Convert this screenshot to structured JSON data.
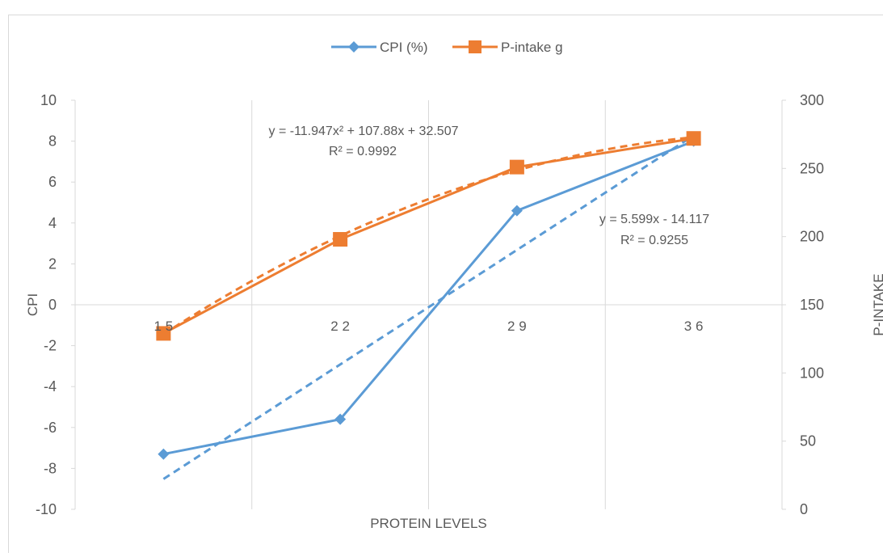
{
  "chart_data": {
    "type": "line",
    "title": "",
    "xlabel": "PROTEIN LEVELS",
    "ylabel": "CPI",
    "y2label": "P-INTAKE",
    "categories": [
      "1 5",
      "2 2",
      "2 9",
      "3 6"
    ],
    "ylim": [
      -10,
      10
    ],
    "y2lim": [
      0,
      300
    ],
    "yticks": [
      "-10",
      "-8",
      "-6",
      "-4",
      "-2",
      "0",
      "2",
      "4",
      "6",
      "8",
      "10"
    ],
    "y2ticks": [
      "0",
      "50",
      "100",
      "150",
      "200",
      "250",
      "300"
    ],
    "legend_position": "top",
    "grid": true,
    "series": [
      {
        "name": "CPI (%)",
        "axis": "left",
        "values": [
          -7.3,
          -5.6,
          4.6,
          8.0
        ],
        "color": "#5b9bd5",
        "marker": "diamond"
      },
      {
        "name": "P-intake g",
        "axis": "right",
        "values": [
          129,
          198,
          251,
          272
        ],
        "color": "#ed7d31",
        "marker": "square"
      }
    ],
    "trendlines": [
      {
        "series": "CPI (%)",
        "kind": "linear",
        "equation": "y = 5.599x - 14.117",
        "r2": "R² = 0.9255",
        "slope": 5.599,
        "intercept": -14.117
      },
      {
        "series": "P-intake g",
        "kind": "poly2",
        "equation": "y = -11.947x² + 107.88x + 32.507",
        "r2": "R² = 0.9992",
        "a": -11.947,
        "b": 107.88,
        "c": 32.507
      }
    ]
  }
}
